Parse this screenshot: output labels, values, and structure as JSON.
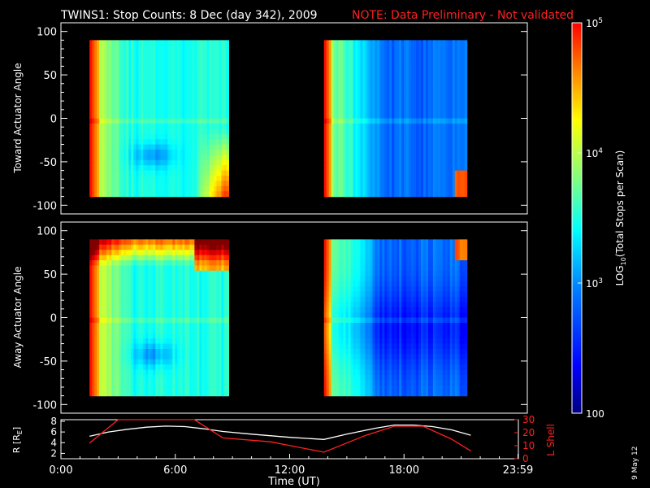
{
  "title": {
    "main": "TWINS1: Stop Counts:  8 Dec (day 342), 2009",
    "note": "NOTE: Data Preliminary - Not validated",
    "note_color": "#ff2020"
  },
  "side_date": "9 May 12",
  "colorbar": {
    "label": "LOG10(Total Stops per Scan)",
    "ticks": [
      "10^5",
      "10^4",
      "10^3",
      "100"
    ],
    "min_log": 2,
    "max_log": 5
  },
  "chart_data": [
    {
      "type": "heatmap",
      "name": "toward",
      "ylabel": "Toward Actuator Angle",
      "ylim": [
        -110,
        110
      ],
      "yticks": [
        100,
        50,
        0,
        -50,
        -100
      ],
      "xlim": [
        0,
        24
      ],
      "coverage_hours": [
        [
          1.5,
          8.8
        ],
        [
          13.8,
          21.3
        ]
      ],
      "angle_range": [
        -90,
        90
      ]
    },
    {
      "type": "heatmap",
      "name": "away",
      "ylabel": "Away Actuator Angle",
      "ylim": [
        -110,
        110
      ],
      "yticks": [
        100,
        50,
        0,
        -50,
        -100
      ],
      "xlim": [
        0,
        24
      ],
      "coverage_hours": [
        [
          1.5,
          8.8
        ],
        [
          13.8,
          21.3
        ]
      ],
      "angle_range": [
        -90,
        90
      ]
    },
    {
      "type": "line",
      "name": "orbit",
      "left_axis": {
        "label": "R [RE]",
        "ticks": [
          "8",
          "6",
          "4",
          "2"
        ],
        "range": [
          1,
          8.3
        ]
      },
      "right_axis": {
        "label": "L Shell",
        "ticks": [
          "30",
          "20",
          "10",
          "0"
        ],
        "range": [
          0,
          30
        ],
        "color": "#ff2020"
      },
      "x_ticks": [
        "0:00",
        "6:00",
        "12:00",
        "18:00",
        "23:59"
      ],
      "xlabel": "Time (UT)",
      "series": [
        {
          "axis": "left",
          "color": "#ffffff",
          "x": [
            1.5,
            2.5,
            3.5,
            4.5,
            5.5,
            6.5,
            7.5,
            8.5,
            10,
            12,
            13.8,
            15,
            16.5,
            17.5,
            18.5,
            19.5,
            20.5,
            21.5
          ],
          "y": [
            5.2,
            6.0,
            6.5,
            6.9,
            7.1,
            7.0,
            6.6,
            6.1,
            5.6,
            5.0,
            4.6,
            5.6,
            6.7,
            7.3,
            7.3,
            7.0,
            6.4,
            5.4
          ]
        },
        {
          "axis": "right",
          "color": "#ff2020",
          "x": [
            1.5,
            3.0,
            7.0,
            8.5,
            11,
            13.8,
            16.0,
            17.5,
            19.0,
            20.5,
            21.5
          ],
          "y": [
            12,
            31,
            31,
            16,
            13,
            5,
            18,
            25,
            25,
            15,
            6
          ]
        }
      ]
    }
  ]
}
